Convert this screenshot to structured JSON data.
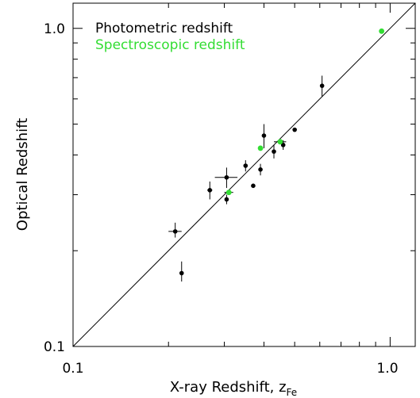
{
  "chart_data": {
    "type": "scatter",
    "xlabel": "X-ray Redshift, z",
    "xlabel_subscript": "Fe",
    "ylabel": "Optical Redshift",
    "xscale": "log",
    "yscale": "log",
    "xlim": [
      0.1,
      1.2
    ],
    "ylim": [
      0.1,
      1.2
    ],
    "x_tick_labels": [
      "0.1",
      "1.0"
    ],
    "y_tick_labels": [
      "0.1",
      "1.0"
    ],
    "grid": false,
    "legend_placement": "top-left",
    "reference_line": "y = x",
    "series": [
      {
        "name": "Photometric redshift",
        "color": "#000000",
        "points": [
          {
            "x": 0.21,
            "y": 0.23,
            "xerr": [
              0.01,
              0.01
            ],
            "yerr": [
              0.01,
              0.015
            ]
          },
          {
            "x": 0.22,
            "y": 0.17,
            "xerr": [
              0.0,
              0.0
            ],
            "yerr": [
              0.01,
              0.015
            ]
          },
          {
            "x": 0.27,
            "y": 0.31,
            "xerr": [
              0.005,
              0.005
            ],
            "yerr": [
              0.02,
              0.02
            ]
          },
          {
            "x": 0.305,
            "y": 0.34,
            "xerr": [
              0.025,
              0.025
            ],
            "yerr": [
              0.025,
              0.025
            ]
          },
          {
            "x": 0.305,
            "y": 0.29,
            "xerr": [
              0.0,
              0.0
            ],
            "yerr": [
              0.01,
              0.01
            ]
          },
          {
            "x": 0.35,
            "y": 0.37,
            "xerr": [
              0.0,
              0.0
            ],
            "yerr": [
              0.015,
              0.015
            ]
          },
          {
            "x": 0.37,
            "y": 0.32,
            "xerr": [
              0.0,
              0.0
            ],
            "yerr": [
              0.005,
              0.005
            ]
          },
          {
            "x": 0.39,
            "y": 0.36,
            "xerr": [
              0.0,
              0.0
            ],
            "yerr": [
              0.015,
              0.015
            ]
          },
          {
            "x": 0.4,
            "y": 0.46,
            "xerr": [
              0.0,
              0.0
            ],
            "yerr": [
              0.04,
              0.04
            ]
          },
          {
            "x": 0.43,
            "y": 0.41,
            "xerr": [
              0.0,
              0.0
            ],
            "yerr": [
              0.02,
              0.02
            ]
          },
          {
            "x": 0.46,
            "y": 0.43,
            "xerr": [
              0.0,
              0.0
            ],
            "yerr": [
              0.015,
              0.015
            ]
          },
          {
            "x": 0.5,
            "y": 0.48,
            "xerr": [
              0.0,
              0.0
            ],
            "yerr": [
              0.005,
              0.005
            ]
          },
          {
            "x": 0.61,
            "y": 0.66,
            "xerr": [
              0.0,
              0.0
            ],
            "yerr": [
              0.05,
              0.05
            ]
          }
        ]
      },
      {
        "name": "Spectroscopic redshift",
        "color": "#33dd33",
        "points": [
          {
            "x": 0.31,
            "y": 0.305,
            "xerr": [
              0.01,
              0.01
            ],
            "yerr": [
              0.0,
              0.0
            ]
          },
          {
            "x": 0.39,
            "y": 0.42,
            "xerr": [
              0.0,
              0.0
            ],
            "yerr": [
              0.0,
              0.0
            ]
          },
          {
            "x": 0.45,
            "y": 0.44,
            "xerr": [
              0.02,
              0.02
            ],
            "yerr": [
              0.0,
              0.0
            ]
          },
          {
            "x": 0.94,
            "y": 0.98,
            "xerr": [
              0.0,
              0.0
            ],
            "yerr": [
              0.0,
              0.0
            ]
          }
        ]
      }
    ]
  }
}
